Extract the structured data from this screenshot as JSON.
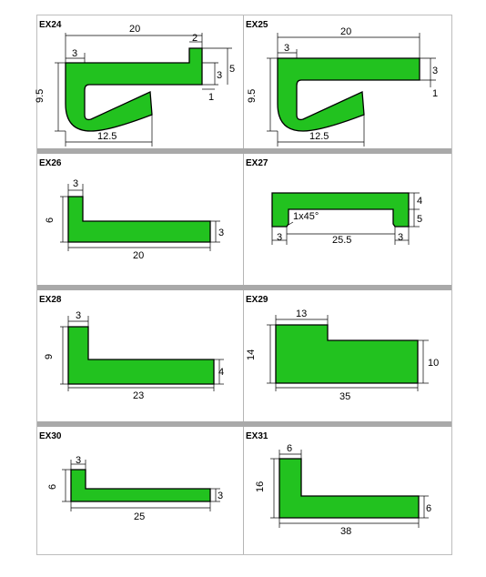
{
  "panels": [
    {
      "code": "EX24",
      "dims": {
        "top": "20",
        "left": "3",
        "right": "2",
        "height": "9.5",
        "bottom": "12.5",
        "r1": "3",
        "r2": "5",
        "gap": "1"
      }
    },
    {
      "code": "EX25",
      "dims": {
        "top": "20",
        "left": "3",
        "height": "9.5",
        "bottom": "12.5",
        "r1": "3",
        "gap": "1"
      }
    },
    {
      "code": "EX26",
      "dims": {
        "width": "3",
        "height": "6",
        "bottom": "20",
        "right": "3"
      }
    },
    {
      "code": "EX27",
      "dims": {
        "chamfer": "1x45°",
        "left": "3",
        "bottom": "25.5",
        "right": "3",
        "r1": "4",
        "r2": "5"
      }
    },
    {
      "code": "EX28",
      "dims": {
        "width": "3",
        "height": "9",
        "bottom": "23",
        "right": "4"
      }
    },
    {
      "code": "EX29",
      "dims": {
        "top": "13",
        "height": "14",
        "bottom": "35",
        "right": "10"
      }
    },
    {
      "code": "EX30",
      "dims": {
        "width": "3",
        "height": "6",
        "bottom": "25",
        "right": "3"
      }
    },
    {
      "code": "EX31",
      "dims": {
        "top": "6",
        "height": "16",
        "bottom": "38",
        "right": "6"
      }
    }
  ],
  "colors": {
    "profile": "#22c21f",
    "separator": "#a9a9a9"
  }
}
